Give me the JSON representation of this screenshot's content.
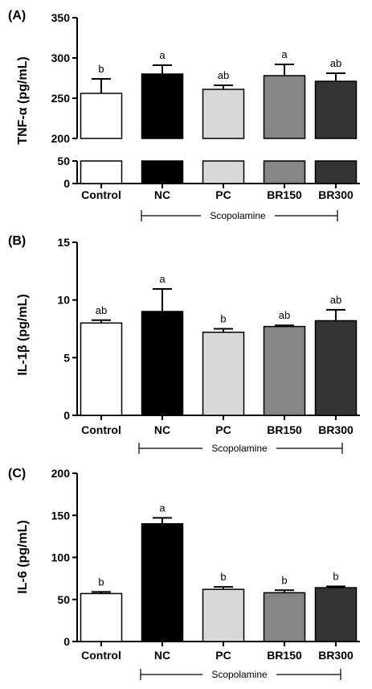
{
  "chart_data": [
    {
      "type": "bar",
      "panel_label": "(A)",
      "ylabel": "TNF-α (pg/mL)",
      "categories": [
        "Control",
        "NC",
        "PC",
        "BR150",
        "BR300"
      ],
      "values": [
        256,
        280,
        261,
        278,
        271
      ],
      "errors": [
        18,
        11,
        5,
        14,
        10
      ],
      "significance": [
        "b",
        "a",
        "ab",
        "a",
        "ab"
      ],
      "fill_colors": [
        "#ffffff",
        "#000000",
        "#d8d8d8",
        "#858585",
        "#343434"
      ],
      "y_axis_break": true,
      "ylim_lower": [
        0,
        50
      ],
      "ylim_upper": [
        200,
        350
      ],
      "yticks_lower": [
        0,
        50
      ],
      "yticks_upper": [
        200,
        250,
        300,
        350
      ],
      "group_label": "Scopolamine",
      "group_span": [
        "NC",
        "BR300"
      ]
    },
    {
      "type": "bar",
      "panel_label": "(B)",
      "ylabel": "IL-1β (pg/mL)",
      "categories": [
        "Control",
        "NC",
        "PC",
        "BR150",
        "BR300"
      ],
      "values": [
        8.0,
        9.0,
        7.2,
        7.7,
        8.2
      ],
      "errors": [
        0.25,
        1.95,
        0.3,
        0.1,
        0.95
      ],
      "significance": [
        "ab",
        "a",
        "b",
        "ab",
        "ab"
      ],
      "fill_colors": [
        "#ffffff",
        "#000000",
        "#d8d8d8",
        "#858585",
        "#343434"
      ],
      "ylim": [
        0,
        15
      ],
      "yticks": [
        0,
        5,
        10,
        15
      ],
      "group_label": "Scopolamine",
      "group_span": [
        "NC",
        "BR300"
      ]
    },
    {
      "type": "bar",
      "panel_label": "(C)",
      "ylabel": "IL-6 (pg/mL)",
      "categories": [
        "Control",
        "NC",
        "PC",
        "BR150",
        "BR300"
      ],
      "values": [
        57,
        140,
        62,
        58,
        64
      ],
      "errors": [
        2,
        7,
        3,
        3,
        1.5
      ],
      "significance": [
        "b",
        "a",
        "b",
        "b",
        "b"
      ],
      "fill_colors": [
        "#ffffff",
        "#000000",
        "#d8d8d8",
        "#858585",
        "#343434"
      ],
      "ylim": [
        0,
        200
      ],
      "yticks": [
        0,
        50,
        100,
        150,
        200
      ],
      "group_label": "Scopolamine",
      "group_span": [
        "NC",
        "BR300"
      ]
    }
  ]
}
